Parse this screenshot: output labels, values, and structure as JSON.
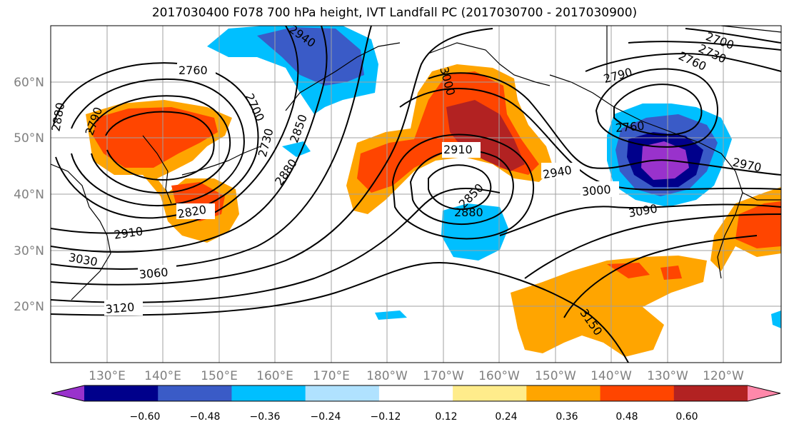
{
  "title": "2017030400 F078 700 hPa height, IVT Landfall PC (2017030700 - 2017030900)",
  "lon_labels": [
    "130°E",
    "140°E",
    "150°E",
    "160°E",
    "170°E",
    "180°W",
    "170°W",
    "160°W",
    "150°W",
    "140°W",
    "130°W",
    "120°W"
  ],
  "lat_labels": [
    "60°N",
    "50°N",
    "40°N",
    "30°N",
    "20°N"
  ],
  "colorbar": {
    "colors": [
      "#9932CC",
      "#00008B",
      "#3A5BC7",
      "#00BFFF",
      "#B0E2FF",
      "#FFFFFF",
      "#FFEC8B",
      "#FFA500",
      "#FF4500",
      "#B22222",
      "#FF88AA"
    ],
    "tick_labels": [
      "−0.60",
      "−0.48",
      "−0.36",
      "−0.24",
      "−0.12",
      "0.12",
      "0.24",
      "0.36",
      "0.48",
      "0.60"
    ]
  },
  "contour_labels": [
    "2760",
    "2790",
    "2880",
    "2940",
    "2700",
    "2730",
    "2850",
    "2880",
    "2820",
    "2910",
    "3030",
    "3060",
    "3120",
    "3000",
    "2910",
    "2850",
    "2880",
    "2940",
    "3000",
    "3090",
    "3150",
    "2790",
    "2760",
    "2700",
    "2730",
    "2760",
    "2970"
  ]
}
